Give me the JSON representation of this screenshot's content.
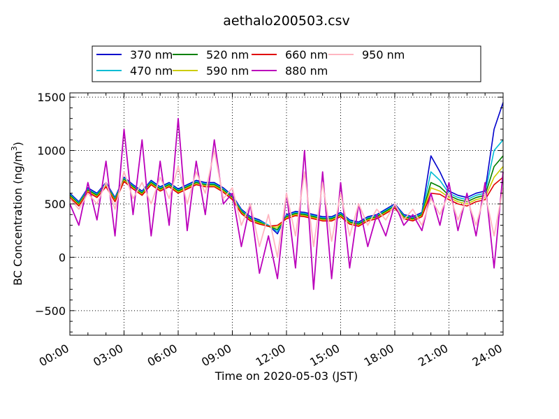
{
  "chart_data": {
    "type": "line",
    "title": "aethalo200503.csv",
    "xlabel": "Time on 2020-05-03 (JST)",
    "ylabel": "BC Concentration (ng/m",
    "ylabel_sup": "3",
    "ylabel_end": ")",
    "xlim": [
      "00:00",
      "24:00"
    ],
    "ylim": [
      -730,
      1540
    ],
    "x_ticks": [
      "00:00",
      "03:00",
      "06:00",
      "09:00",
      "12:00",
      "15:00",
      "18:00",
      "21:00",
      "24:00"
    ],
    "y_ticks": [
      -500,
      0,
      500,
      1000,
      1500
    ],
    "grid": true,
    "legend_placement": "top",
    "x_hours": [
      0.0,
      0.5,
      1.0,
      1.5,
      2.0,
      2.5,
      3.0,
      3.5,
      4.0,
      4.5,
      5.0,
      5.5,
      6.0,
      6.5,
      7.0,
      7.5,
      8.0,
      8.5,
      9.0,
      9.5,
      10.0,
      10.5,
      11.0,
      11.5,
      12.0,
      12.5,
      13.0,
      13.5,
      14.0,
      14.5,
      15.0,
      15.5,
      16.0,
      16.5,
      17.0,
      17.5,
      18.0,
      18.5,
      19.0,
      19.5,
      20.0,
      20.5,
      21.0,
      21.5,
      22.0,
      22.5,
      23.0,
      23.5,
      24.0
    ],
    "series": [
      {
        "name": "370 nm",
        "color": "#0000cc",
        "values": [
          600,
          520,
          650,
          600,
          700,
          560,
          750,
          680,
          620,
          720,
          660,
          700,
          640,
          680,
          720,
          700,
          700,
          650,
          580,
          450,
          380,
          350,
          300,
          220,
          400,
          430,
          420,
          400,
          380,
          380,
          420,
          350,
          330,
          380,
          400,
          450,
          500,
          400,
          380,
          420,
          950,
          800,
          620,
          580,
          560,
          600,
          620,
          1200,
          1450
        ]
      },
      {
        "name": "470 nm",
        "color": "#00bcd4",
        "values": [
          590,
          510,
          640,
          590,
          690,
          550,
          740,
          670,
          610,
          710,
          650,
          690,
          630,
          670,
          710,
          690,
          690,
          640,
          570,
          440,
          370,
          340,
          300,
          240,
          390,
          420,
          410,
          390,
          370,
          370,
          410,
          340,
          320,
          370,
          390,
          440,
          490,
          390,
          370,
          410,
          800,
          720,
          600,
          560,
          540,
          580,
          600,
          1000,
          1100
        ]
      },
      {
        "name": "520 nm",
        "color": "#008000",
        "values": [
          580,
          500,
          630,
          580,
          680,
          540,
          730,
          660,
          600,
          700,
          640,
          680,
          620,
          660,
          700,
          680,
          680,
          630,
          560,
          430,
          360,
          330,
          290,
          260,
          380,
          410,
          400,
          380,
          360,
          360,
          400,
          330,
          310,
          360,
          380,
          430,
          480,
          380,
          360,
          400,
          700,
          660,
          580,
          540,
          520,
          560,
          580,
          850,
          950
        ]
      },
      {
        "name": "590 nm",
        "color": "#cccc00",
        "values": [
          570,
          490,
          620,
          570,
          670,
          530,
          720,
          650,
          590,
          690,
          630,
          670,
          610,
          650,
          690,
          670,
          670,
          620,
          550,
          420,
          350,
          320,
          290,
          280,
          370,
          400,
          390,
          370,
          350,
          350,
          390,
          320,
          300,
          350,
          370,
          420,
          470,
          370,
          350,
          390,
          650,
          620,
          560,
          520,
          500,
          540,
          560,
          750,
          850
        ]
      },
      {
        "name": "660 nm",
        "color": "#e00000",
        "values": [
          560,
          480,
          610,
          560,
          660,
          520,
          710,
          640,
          580,
          680,
          620,
          660,
          600,
          640,
          680,
          660,
          660,
          610,
          540,
          410,
          340,
          310,
          290,
          300,
          360,
          390,
          380,
          360,
          340,
          340,
          380,
          310,
          290,
          340,
          360,
          410,
          460,
          360,
          340,
          380,
          600,
          590,
          540,
          500,
          480,
          520,
          540,
          680,
          750
        ]
      },
      {
        "name": "880 nm",
        "color": "#bb00bb",
        "values": [
          500,
          300,
          700,
          350,
          900,
          200,
          1200,
          400,
          1100,
          200,
          900,
          300,
          1300,
          250,
          900,
          400,
          1100,
          500,
          600,
          100,
          500,
          -150,
          200,
          -200,
          600,
          -100,
          1000,
          -300,
          800,
          -200,
          700,
          -100,
          500,
          100,
          400,
          200,
          500,
          300,
          400,
          250,
          600,
          300,
          700,
          250,
          600,
          200,
          700,
          -100,
          800
        ]
      },
      {
        "name": "950 nm",
        "color": "#ffb6c1",
        "values": [
          550,
          450,
          600,
          500,
          700,
          450,
          800,
          550,
          700,
          500,
          750,
          550,
          850,
          500,
          800,
          600,
          1000,
          550,
          650,
          300,
          500,
          100,
          400,
          0,
          600,
          200,
          800,
          100,
          700,
          150,
          600,
          200,
          500,
          300,
          450,
          350,
          500,
          350,
          450,
          300,
          550,
          400,
          600,
          350,
          550,
          300,
          600,
          200,
          650
        ]
      }
    ]
  }
}
